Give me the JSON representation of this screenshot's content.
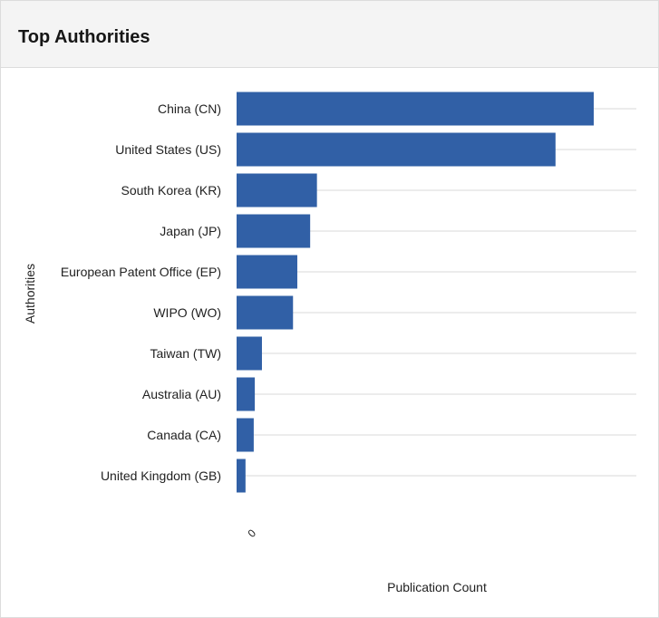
{
  "panel": {
    "title": "Top Authorities"
  },
  "colors": {
    "bar": "#3160a6",
    "gridline": "#d9d9d9",
    "header_bg": "#f4f4f4",
    "text": "#222222"
  },
  "chart_data": {
    "type": "bar",
    "orientation": "horizontal",
    "categories": [
      "China (CN)",
      "United States (US)",
      "South Korea (KR)",
      "Japan (JP)",
      "European Patent Office (EP)",
      "WIPO (WO)",
      "Taiwan (TW)",
      "Australia (AU)",
      "Canada (CA)",
      "United Kingdom (GB)"
    ],
    "values": [
      1000,
      893,
      225,
      206,
      170,
      158,
      71,
      51,
      48,
      25
    ],
    "xlabel": "Publication Count",
    "ylabel": "Authorities",
    "x_tick_labels": [
      "0"
    ],
    "xlim": [
      0,
      1120
    ],
    "grid": true
  }
}
